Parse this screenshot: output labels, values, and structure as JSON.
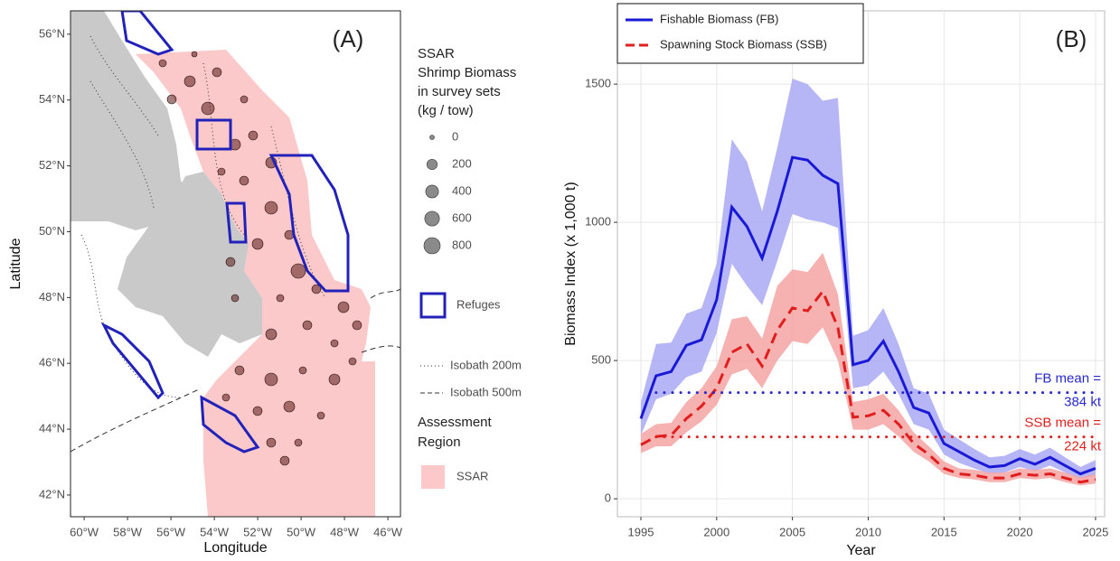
{
  "chart_data": [
    {
      "type": "map",
      "annotation": "(A)",
      "xlabel": "Longitude",
      "ylabel": "Latitude",
      "xlim": [
        -60.63,
        -45.42
      ],
      "ylim": [
        41.34,
        56.71
      ],
      "xticks": [
        {
          "value": -60,
          "label": "60°W"
        },
        {
          "value": -58,
          "label": "58°W"
        },
        {
          "value": -56,
          "label": "56°W"
        },
        {
          "value": -54,
          "label": "54°W"
        },
        {
          "value": -52,
          "label": "52°W"
        },
        {
          "value": -50,
          "label": "50°W"
        },
        {
          "value": -48,
          "label": "48°W"
        },
        {
          "value": -46,
          "label": "46°W"
        }
      ],
      "yticks": [
        {
          "value": 42,
          "label": "42°N"
        },
        {
          "value": 44,
          "label": "44°N"
        },
        {
          "value": 46,
          "label": "46°N"
        },
        {
          "value": 48,
          "label": "48°N"
        },
        {
          "value": 50,
          "label": "50°N"
        },
        {
          "value": 52,
          "label": "52°N"
        },
        {
          "value": 54,
          "label": "54°N"
        },
        {
          "value": 56,
          "label": "56°N"
        }
      ],
      "legend": {
        "title": [
          "SSAR",
          "Shrimp Biomass",
          "in survey sets",
          "(kg / tow)"
        ],
        "sizes": [
          0,
          200,
          400,
          600,
          800
        ],
        "refuges": "Refuges",
        "isobaths": [
          "Isobath 200m",
          "Isobath 500m"
        ],
        "region_title": [
          "Assessment",
          "Region"
        ],
        "region": "SSAR"
      }
    },
    {
      "type": "line",
      "annotation": "(B)",
      "xlabel": "Year",
      "ylabel": "Biomass Index (x 1,000 t)",
      "x": [
        1995,
        1996,
        1997,
        1998,
        1999,
        2000,
        2001,
        2002,
        2003,
        2004,
        2005,
        2006,
        2007,
        2008,
        2009,
        2010,
        2011,
        2012,
        2013,
        2014,
        2015,
        2016,
        2017,
        2018,
        2019,
        2020,
        2021,
        2022,
        2023,
        2024,
        2025
      ],
      "xlim": [
        1993.45,
        2025.6
      ],
      "ylim": [
        -65,
        1765
      ],
      "xticks": [
        1995,
        2000,
        2005,
        2010,
        2015,
        2020,
        2025
      ],
      "yticks": [
        0,
        500,
        1000,
        1500
      ],
      "grid": true,
      "legend": "top-left",
      "series": [
        {
          "name": "Fishable Biomass (FB)",
          "color": "#1a1ad6",
          "band_color": "#a9a9f5",
          "dash": false,
          "values": [
            290,
            445,
            460,
            555,
            575,
            720,
            1055,
            985,
            870,
            1040,
            1235,
            1225,
            1170,
            1140,
            485,
            500,
            570,
            460,
            330,
            310,
            200,
            170,
            140,
            115,
            120,
            145,
            125,
            150,
            120,
            90,
            110
          ],
          "lower": [
            230,
            360,
            380,
            440,
            460,
            600,
            850,
            770,
            700,
            860,
            1030,
            1010,
            1000,
            980,
            400,
            410,
            460,
            380,
            270,
            250,
            160,
            130,
            110,
            90,
            95,
            115,
            100,
            120,
            95,
            70,
            85
          ],
          "upper": [
            350,
            560,
            565,
            670,
            690,
            850,
            1300,
            1220,
            1040,
            1270,
            1520,
            1500,
            1440,
            1450,
            590,
            610,
            690,
            560,
            400,
            380,
            250,
            215,
            180,
            150,
            155,
            180,
            160,
            185,
            150,
            115,
            140
          ]
        },
        {
          "name": "Spawning Stock Biomass (SSB)",
          "color": "#e01e1e",
          "band_color": "#f5a3a3",
          "dash": true,
          "values": [
            195,
            225,
            230,
            290,
            335,
            400,
            530,
            560,
            480,
            610,
            690,
            680,
            750,
            620,
            295,
            300,
            320,
            270,
            200,
            160,
            110,
            90,
            85,
            75,
            75,
            90,
            85,
            90,
            75,
            60,
            70
          ],
          "lower": [
            165,
            190,
            190,
            240,
            280,
            340,
            450,
            470,
            400,
            500,
            570,
            560,
            620,
            500,
            250,
            250,
            270,
            225,
            170,
            135,
            90,
            75,
            70,
            60,
            60,
            75,
            70,
            75,
            60,
            48,
            55
          ],
          "upper": [
            235,
            270,
            275,
            350,
            400,
            480,
            650,
            660,
            580,
            770,
            830,
            820,
            890,
            740,
            350,
            360,
            380,
            320,
            240,
            190,
            135,
            110,
            105,
            95,
            95,
            110,
            105,
            110,
            95,
            78,
            90
          ]
        }
      ],
      "mean_lines": [
        {
          "value": 384,
          "color": "#2a2acc",
          "x": [
            1996,
            2025
          ],
          "label": [
            "FB mean =",
            "384 kt"
          ]
        },
        {
          "value": 224,
          "color": "#e02020",
          "x": [
            1996,
            2025
          ],
          "label": [
            "SSB mean =",
            "224 kt"
          ]
        }
      ]
    }
  ]
}
